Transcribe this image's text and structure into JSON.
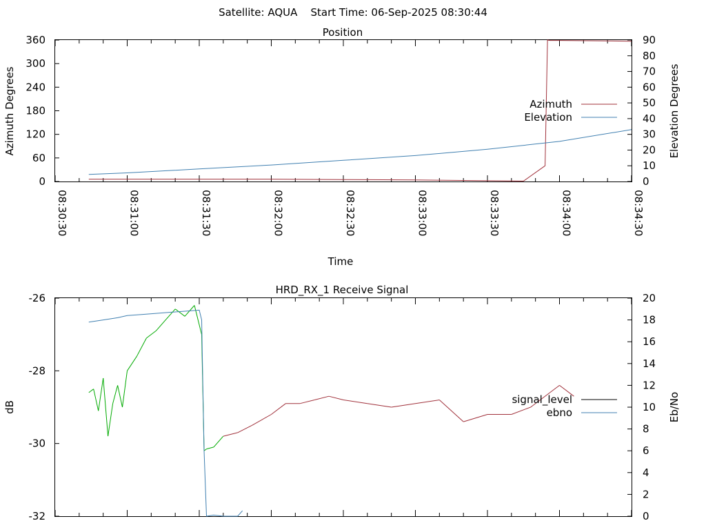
{
  "header": {
    "title": "Satellite: AQUA    Start Time: 06-Sep-2025 08:30:44"
  },
  "chart_data": [
    {
      "type": "line",
      "title": "Position",
      "xlabel": "Time",
      "ylabel": "Azimuth Degrees",
      "y2label": "Elevation Degrees",
      "x_ticks": [
        "08:30:30",
        "08:31:00",
        "08:31:30",
        "08:32:00",
        "08:32:30",
        "08:33:00",
        "08:33:30",
        "08:34:00",
        "08:34:30"
      ],
      "xlim": [
        "08:30:30",
        "08:34:30"
      ],
      "ylim": [
        0,
        360
      ],
      "y2lim": [
        0,
        90
      ],
      "y_ticks": [
        "0",
        "60",
        "120",
        "180",
        "240",
        "300",
        "360"
      ],
      "y2_ticks": [
        "0",
        "10",
        "20",
        "30",
        "40",
        "50",
        "60",
        "70",
        "80",
        "90"
      ],
      "legend_position": "right",
      "colors": {
        "azimuth": "#a0303a",
        "elevation": "#3f7fb0"
      },
      "series": [
        {
          "name": "Azimuth",
          "axis": "left",
          "x": [
            "08:30:44",
            "08:31:00",
            "08:31:30",
            "08:32:00",
            "08:32:30",
            "08:33:00",
            "08:33:30",
            "08:33:45",
            "08:33:54",
            "08:33:55",
            "08:33:56",
            "08:34:00",
            "08:34:30"
          ],
          "y": [
            6,
            6,
            6,
            6,
            5,
            4,
            2,
            1,
            40,
            360,
            359,
            359,
            357
          ]
        },
        {
          "name": "Elevation",
          "axis": "right",
          "x": [
            "08:30:44",
            "08:31:00",
            "08:31:30",
            "08:32:00",
            "08:32:30",
            "08:33:00",
            "08:33:30",
            "08:34:00",
            "08:34:30"
          ],
          "y": [
            4.5,
            5.5,
            8.0,
            10.5,
            13.5,
            16.5,
            20.5,
            25.5,
            33.0
          ]
        }
      ]
    },
    {
      "type": "line",
      "title": "HRD_RX_1 Receive Signal",
      "xlabel": "",
      "ylabel": "dB",
      "y2label": "Eb/No",
      "xlim": [
        "08:30:30",
        "08:34:30"
      ],
      "ylim": [
        -32,
        -26
      ],
      "y2lim": [
        0,
        20
      ],
      "y_ticks": [
        "-32",
        "-30",
        "-28",
        "-26"
      ],
      "y2_ticks": [
        "0",
        "2",
        "4",
        "6",
        "8",
        "10",
        "12",
        "14",
        "16",
        "18",
        "20"
      ],
      "legend_position": "right",
      "colors": {
        "signal_level": "#000000",
        "ebno": "#3f7fb0",
        "signal_locked": "#00aa00",
        "signal_unlocked": "#a0303a"
      },
      "series": [
        {
          "name": "signal_level",
          "axis": "left",
          "x": [
            "08:30:44",
            "08:30:46",
            "08:30:48",
            "08:30:50",
            "08:30:52",
            "08:30:54",
            "08:30:56",
            "08:30:58",
            "08:31:00",
            "08:31:04",
            "08:31:08",
            "08:31:12",
            "08:31:16",
            "08:31:20",
            "08:31:24",
            "08:31:28",
            "08:31:31",
            "08:31:32",
            "08:31:33",
            "08:31:36",
            "08:31:40",
            "08:31:46",
            "08:31:52",
            "08:32:00",
            "08:32:06",
            "08:32:12",
            "08:32:18",
            "08:32:24",
            "08:32:30",
            "08:32:40",
            "08:32:50",
            "08:33:00",
            "08:33:10",
            "08:33:20",
            "08:33:30",
            "08:33:40",
            "08:33:48",
            "08:33:56",
            "08:34:00",
            "08:34:06"
          ],
          "y": [
            -28.6,
            -28.5,
            -29.1,
            -28.2,
            -29.8,
            -28.9,
            -28.4,
            -29.0,
            -28.0,
            -27.6,
            -27.1,
            -26.9,
            -26.6,
            -26.3,
            -26.5,
            -26.2,
            -27.0,
            -30.2,
            -30.15,
            -30.1,
            -29.8,
            -29.7,
            -29.5,
            -29.2,
            -28.9,
            -28.9,
            -28.8,
            -28.7,
            -28.8,
            -28.9,
            -29.0,
            -28.9,
            -28.8,
            -29.4,
            -29.2,
            -29.2,
            -29.0,
            -28.6,
            -28.4,
            -28.7
          ]
        },
        {
          "name": "ebno",
          "axis": "right",
          "x": [
            "08:30:44",
            "08:30:50",
            "08:30:56",
            "08:31:00",
            "08:31:06",
            "08:31:12",
            "08:31:18",
            "08:31:24",
            "08:31:30",
            "08:31:31",
            "08:31:32",
            "08:31:33",
            "08:31:36",
            "08:31:40",
            "08:31:46",
            "08:31:48"
          ],
          "y": [
            17.8,
            18.0,
            18.2,
            18.4,
            18.5,
            18.6,
            18.7,
            18.8,
            18.9,
            18.0,
            6.0,
            0.0,
            0.1,
            0.0,
            0.0,
            0.5
          ]
        }
      ]
    }
  ]
}
